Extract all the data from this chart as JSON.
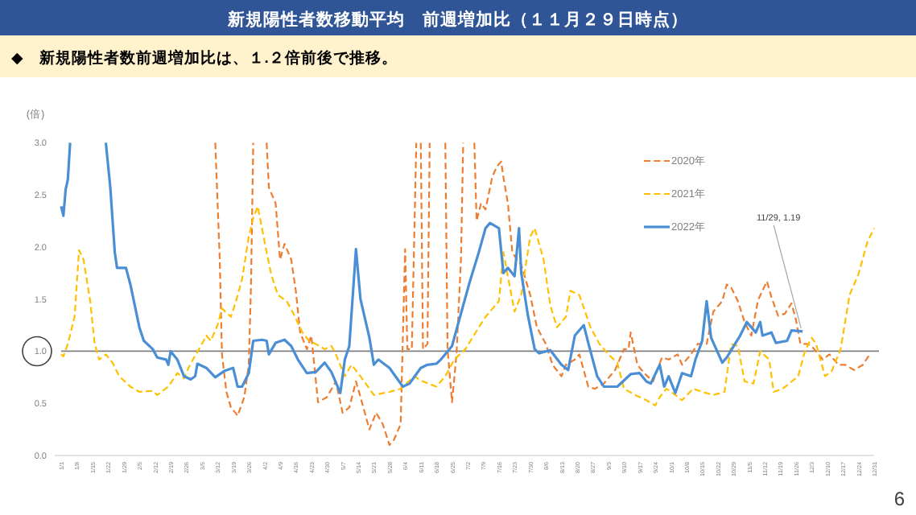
{
  "chart_data": {
    "type": "line",
    "title": "新規陽性者数移動平均　前週増加比（１１月２９日時点）",
    "subtitle": "◆　新規陽性者数前週増加比は、１.２倍前後で推移。",
    "ylabel": "(倍)",
    "legend": "top right",
    "xlim": [
      "--01-01",
      "--12-31"
    ],
    "xticks": [
      {
        "value": "--01-01",
        "label": "1/1"
      },
      {
        "value": "--01-08",
        "label": "1/8"
      },
      {
        "value": "--01-15",
        "label": "1/15"
      },
      {
        "value": "--01-22",
        "label": "1/22"
      },
      {
        "value": "--01-29",
        "label": "1/29"
      },
      {
        "value": "--02-05",
        "label": "2/5"
      },
      {
        "value": "--02-12",
        "label": "2/12"
      },
      {
        "value": "--02-19",
        "label": "2/19"
      },
      {
        "value": "--02-26",
        "label": "2/26"
      },
      {
        "value": "--03-05",
        "label": "3/5"
      },
      {
        "value": "--03-12",
        "label": "3/12"
      },
      {
        "value": "--03-19",
        "label": "3/19"
      },
      {
        "value": "--03-26",
        "label": "3/26"
      },
      {
        "value": "--04-02",
        "label": "4/2"
      },
      {
        "value": "--04-09",
        "label": "4/9"
      },
      {
        "value": "--04-16",
        "label": "4/16"
      },
      {
        "value": "--04-23",
        "label": "4/23"
      },
      {
        "value": "--04-30",
        "label": "4/30"
      },
      {
        "value": "--05-07",
        "label": "5/7"
      },
      {
        "value": "--05-14",
        "label": "5/14"
      },
      {
        "value": "--05-21",
        "label": "5/21"
      },
      {
        "value": "--05-28",
        "label": "5/28"
      },
      {
        "value": "--06-04",
        "label": "6/4"
      },
      {
        "value": "--06-11",
        "label": "6/11"
      },
      {
        "value": "--06-18",
        "label": "6/18"
      },
      {
        "value": "--06-25",
        "label": "6/25"
      },
      {
        "value": "--07-02",
        "label": "7/2"
      },
      {
        "value": "--07-09",
        "label": "7/9"
      },
      {
        "value": "--07-16",
        "label": "7/16"
      },
      {
        "value": "--07-23",
        "label": "7/23"
      },
      {
        "value": "--07-30",
        "label": "7/30"
      },
      {
        "value": "--08-06",
        "label": "8/6"
      },
      {
        "value": "--08-13",
        "label": "8/13"
      },
      {
        "value": "--08-20",
        "label": "8/20"
      },
      {
        "value": "--08-27",
        "label": "8/27"
      },
      {
        "value": "--09-03",
        "label": "9/3"
      },
      {
        "value": "--09-10",
        "label": "9/10"
      },
      {
        "value": "--09-17",
        "label": "9/17"
      },
      {
        "value": "--09-24",
        "label": "9/24"
      },
      {
        "value": "--10-01",
        "label": "10/1"
      },
      {
        "value": "--10-08",
        "label": "10/8"
      },
      {
        "value": "--10-15",
        "label": "10/15"
      },
      {
        "value": "--10-22",
        "label": "10/22"
      },
      {
        "value": "--10-29",
        "label": "10/29"
      },
      {
        "value": "--11-05",
        "label": "11/5"
      },
      {
        "value": "--11-12",
        "label": "11/12"
      },
      {
        "value": "--11-19",
        "label": "11/19"
      },
      {
        "value": "--11-26",
        "label": "11/26"
      },
      {
        "value": "--12-03",
        "label": "12/3"
      },
      {
        "value": "--12-10",
        "label": "12/10"
      },
      {
        "value": "--12-17",
        "label": "12/17"
      },
      {
        "value": "--12-24",
        "label": "12/24"
      },
      {
        "value": "--12-31",
        "label": "12/31"
      }
    ],
    "ylim": [
      0,
      3
    ],
    "yticks": [
      {
        "value": 0,
        "label": "0.0"
      },
      {
        "value": 0.5,
        "label": "0.5"
      },
      {
        "value": 1,
        "label": "1.0"
      },
      {
        "value": 1.5,
        "label": "1.5"
      },
      {
        "value": 2,
        "label": "2.0"
      },
      {
        "value": 2.5,
        "label": "2.5"
      },
      {
        "value": 3,
        "label": "3.0"
      }
    ],
    "ref_lines": [
      {
        "axis": "y",
        "value": 1,
        "color": "#7f7f7f"
      }
    ],
    "annotations": [
      {
        "text": "11/29, 1.19",
        "x": "--11-29",
        "y": 1.19
      },
      "6"
    ],
    "series": [
      {
        "name": "2020年",
        "color": "#ed7d31",
        "line_style": "dashed",
        "x": [
          "--03-11",
          "--03-13",
          "--03-14",
          "--03-16",
          "--03-18",
          "--03-20",
          "--03-21",
          "--03-24",
          "--03-26",
          "--03-27",
          "--03-28",
          "--04-03",
          "--04-04",
          "--04-07",
          "--04-09",
          "--04-11",
          "--04-14",
          "--04-16",
          "--04-18",
          "--04-21",
          "--04-23",
          "--04-26",
          "--04-30",
          "--05-04",
          "--05-07",
          "--05-10",
          "--05-13",
          "--05-15",
          "--05-19",
          "--05-22",
          "--05-25",
          "--05-28",
          "--05-30",
          "--06-02",
          "--06-04",
          "--06-05",
          "--06-07",
          "--06-09",
          "--06-11",
          "--06-12",
          "--06-14",
          "--06-15",
          "--06-22",
          "--06-23",
          "--06-25",
          "--06-27",
          "--06-29",
          "--06-30",
          "--07-05",
          "--07-06",
          "--07-08",
          "--07-10",
          "--07-13",
          "--07-15",
          "--07-17",
          "--07-18",
          "--07-20",
          "--07-22",
          "--07-24",
          "--07-26",
          "--07-30",
          "--08-02",
          "--08-06",
          "--08-09",
          "--08-13",
          "--08-15",
          "--08-19",
          "--08-21",
          "--08-25",
          "--08-28",
          "--09-01",
          "--09-06",
          "--09-10",
          "--09-12",
          "--09-13",
          "--09-16",
          "--09-19",
          "--09-23",
          "--09-27",
          "--09-30",
          "--10-04",
          "--10-06",
          "--10-10",
          "--10-13",
          "--10-17",
          "--10-20",
          "--10-24",
          "--10-26",
          "--10-28",
          "--10-31",
          "--11-03",
          "--11-06",
          "--11-09",
          "--11-13",
          "--11-15",
          "--11-18",
          "--11-21",
          "--11-24",
          "--11-26",
          "--11-28",
          "--12-01",
          "--12-03",
          "--12-08",
          "--12-11",
          "--12-15",
          "--12-18",
          "--12-22",
          "--12-26",
          "--12-29"
        ],
        "values": [
          3.0,
          1.88,
          0.97,
          0.61,
          0.46,
          0.41,
          0.38,
          0.56,
          0.87,
          1.64,
          3.0,
          3.0,
          2.57,
          2.42,
          1.88,
          2.03,
          1.88,
          1.59,
          1.18,
          1.02,
          1.15,
          0.51,
          0.56,
          0.71,
          0.41,
          0.46,
          0.71,
          0.56,
          0.25,
          0.41,
          0.3,
          0.1,
          0.15,
          0.3,
          1.98,
          1.02,
          1.02,
          3.0,
          3.0,
          1.02,
          1.07,
          3.0,
          3.0,
          1.02,
          0.51,
          0.97,
          1.88,
          3.0,
          3.0,
          2.25,
          2.42,
          2.36,
          2.67,
          2.77,
          2.82,
          2.67,
          2.42,
          1.95,
          1.88,
          1.83,
          1.54,
          1.23,
          1.07,
          0.87,
          0.76,
          0.87,
          0.92,
          0.97,
          0.66,
          0.64,
          0.69,
          0.82,
          1.02,
          1.02,
          1.18,
          0.87,
          0.79,
          0.71,
          0.94,
          0.92,
          0.97,
          0.87,
          0.97,
          1.07,
          1.07,
          1.38,
          1.48,
          1.64,
          1.61,
          1.48,
          1.28,
          1.15,
          1.49,
          1.67,
          1.52,
          1.34,
          1.36,
          1.46,
          1.3,
          1.07,
          1.07,
          1.05,
          0.92,
          0.97,
          0.87,
          0.87,
          0.82,
          0.87,
          0.97
        ]
      },
      {
        "name": "2021年",
        "color": "#ffc000",
        "line_style": "dashed",
        "x": [
          "--01-01",
          "--01-02",
          "--01-04",
          "--01-07",
          "--01-09",
          "--01-11",
          "--01-14",
          "--01-16",
          "--01-18",
          "--01-21",
          "--01-24",
          "--01-27",
          "--02-01",
          "--02-05",
          "--02-11",
          "--02-13",
          "--02-18",
          "--02-22",
          "--02-25",
          "--02-27",
          "--03-01",
          "--03-05",
          "--03-07",
          "--03-09",
          "--03-12",
          "--03-14",
          "--03-18",
          "--03-20",
          "--03-23",
          "--03-26",
          "--03-28",
          "--03-30",
          "--03-31",
          "--04-03",
          "--04-05",
          "--04-08",
          "--04-12",
          "--04-15",
          "--04-19",
          "--04-22",
          "--04-25",
          "--04-29",
          "--05-02",
          "--05-04",
          "--05-08",
          "--05-11",
          "--05-15",
          "--05-21",
          "--05-28",
          "--06-02",
          "--06-08",
          "--06-12",
          "--06-18",
          "--06-22",
          "--06-26",
          "--07-01",
          "--07-07",
          "--07-10",
          "--07-16",
          "--07-18",
          "--07-20",
          "--07-23",
          "--07-26",
          "--07-30",
          "--08-01",
          "--08-05",
          "--08-08",
          "--08-11",
          "--08-13",
          "--08-15",
          "--08-17",
          "--08-21",
          "--08-26",
          "--08-30",
          "--09-03",
          "--09-07",
          "--09-10",
          "--09-15",
          "--09-20",
          "--09-24",
          "--09-26",
          "--09-29",
          "--10-03",
          "--10-06",
          "--10-11",
          "--10-15",
          "--10-20",
          "--10-25",
          "--10-28",
          "--10-31",
          "--11-03",
          "--11-07",
          "--11-10",
          "--11-14",
          "--11-16",
          "--11-20",
          "--11-23",
          "--11-27",
          "--11-30",
          "--12-03",
          "--12-05",
          "--12-09",
          "--12-12",
          "--12-16",
          "--12-20",
          "--12-24",
          "--12-28",
          "--12-31"
        ],
        "values": [
          0.97,
          0.95,
          1.07,
          1.33,
          1.97,
          1.88,
          1.48,
          1.07,
          0.92,
          0.97,
          0.89,
          0.76,
          0.66,
          0.61,
          0.62,
          0.58,
          0.66,
          0.79,
          0.74,
          0.84,
          0.92,
          1.07,
          1.15,
          1.1,
          1.25,
          1.41,
          1.33,
          1.46,
          1.69,
          2.1,
          2.28,
          2.39,
          2.28,
          1.95,
          1.74,
          1.54,
          1.48,
          1.36,
          1.18,
          1.1,
          1.07,
          1.02,
          1.05,
          0.97,
          0.76,
          0.87,
          0.76,
          0.58,
          0.61,
          0.64,
          0.76,
          0.71,
          0.66,
          0.76,
          0.92,
          1.02,
          1.23,
          1.33,
          1.48,
          1.95,
          1.72,
          1.38,
          1.54,
          2.1,
          2.18,
          1.88,
          1.44,
          1.23,
          1.28,
          1.33,
          1.58,
          1.54,
          1.23,
          1.07,
          0.97,
          0.89,
          0.64,
          0.58,
          0.53,
          0.48,
          0.56,
          0.64,
          0.58,
          0.53,
          0.64,
          0.61,
          0.58,
          0.61,
          1.07,
          1.05,
          0.71,
          0.69,
          1.0,
          0.92,
          0.61,
          0.64,
          0.69,
          0.76,
          1.0,
          1.13,
          1.07,
          0.76,
          0.81,
          1.02,
          1.54,
          1.74,
          2.05,
          2.18
        ]
      },
      {
        "name": "2022年",
        "color": "#4a8fd6",
        "line_style": "solid",
        "x": [
          "--01-01",
          "--01-02",
          "--01-03",
          "--01-04",
          "--01-05",
          "--01-21",
          "--01-23",
          "--01-25",
          "--01-26",
          "--01-30",
          "--02-01",
          "--02-05",
          "--02-07",
          "--02-11",
          "--02-13",
          "--02-17",
          "--02-18",
          "--02-19",
          "--02-22",
          "--02-25",
          "--02-28",
          "--03-02",
          "--03-03",
          "--03-07",
          "--03-11",
          "--03-15",
          "--03-19",
          "--03-21",
          "--03-23",
          "--03-26",
          "--03-28",
          "--04-01",
          "--04-03",
          "--04-04",
          "--04-07",
          "--04-11",
          "--04-14",
          "--04-17",
          "--04-21",
          "--04-25",
          "--04-29",
          "--05-02",
          "--05-06",
          "--05-08",
          "--05-10",
          "--05-13",
          "--05-15",
          "--05-19",
          "--05-21",
          "--05-23",
          "--05-28",
          "--06-03",
          "--06-06",
          "--06-11",
          "--06-14",
          "--06-18",
          "--06-20",
          "--06-25",
          "--06-30",
          "--07-03",
          "--07-07",
          "--07-10",
          "--07-12",
          "--07-16",
          "--07-18",
          "--07-20",
          "--07-23",
          "--07-25",
          "--07-26",
          "--07-29",
          "--08-01",
          "--08-03",
          "--08-08",
          "--08-13",
          "--08-16",
          "--08-19",
          "--08-23",
          "--08-25",
          "--08-29",
          "--09-01",
          "--09-07",
          "--09-13",
          "--09-17",
          "--09-20",
          "--09-22",
          "--09-26",
          "--09-28",
          "--09-30",
          "--10-03",
          "--10-06",
          "--10-10",
          "--10-12",
          "--10-15",
          "--10-17",
          "--10-19",
          "--10-24",
          "--10-26",
          "--10-30",
          "--11-01",
          "--11-04",
          "--11-08",
          "--11-10",
          "--11-11",
          "--11-15",
          "--11-17",
          "--11-22",
          "--11-24",
          "--11-29"
        ],
        "values": [
          2.39,
          2.3,
          2.55,
          2.65,
          3.0,
          3.0,
          2.57,
          1.95,
          1.8,
          1.8,
          1.64,
          1.23,
          1.1,
          1.02,
          0.94,
          0.92,
          0.87,
          1.0,
          0.92,
          0.76,
          0.73,
          0.76,
          0.88,
          0.84,
          0.75,
          0.81,
          0.84,
          0.66,
          0.66,
          0.79,
          1.1,
          1.11,
          1.1,
          0.97,
          1.08,
          1.11,
          1.05,
          0.92,
          0.79,
          0.8,
          0.89,
          0.8,
          0.6,
          0.92,
          1.05,
          1.98,
          1.5,
          1.13,
          0.87,
          0.92,
          0.84,
          0.66,
          0.69,
          0.84,
          0.87,
          0.88,
          0.92,
          1.05,
          1.44,
          1.67,
          1.95,
          2.18,
          2.23,
          2.18,
          1.75,
          1.8,
          1.72,
          2.18,
          1.75,
          1.34,
          1.02,
          0.98,
          1.01,
          0.87,
          0.82,
          1.15,
          1.25,
          1.08,
          0.76,
          0.66,
          0.66,
          0.78,
          0.79,
          0.71,
          0.69,
          0.87,
          0.66,
          0.76,
          0.6,
          0.79,
          0.76,
          0.92,
          1.1,
          1.48,
          1.13,
          0.89,
          0.94,
          1.08,
          1.15,
          1.28,
          1.18,
          1.28,
          1.15,
          1.18,
          1.08,
          1.1,
          1.2,
          1.19
        ]
      }
    ]
  }
}
